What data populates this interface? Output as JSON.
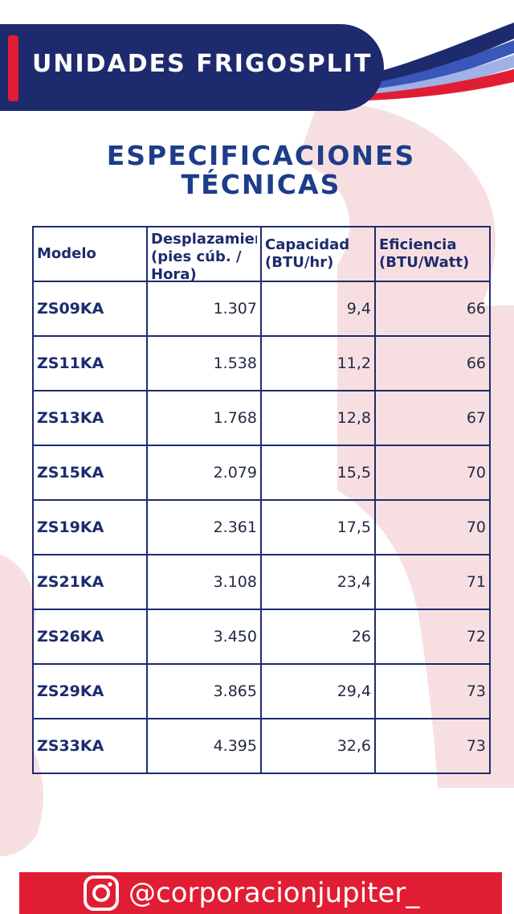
{
  "header": {
    "title": "UNIDADES FRIGOSPLIT"
  },
  "page": {
    "title_line1": "ESPECIFICACIONES",
    "title_line2": "TÉCNICAS"
  },
  "table": {
    "columns": [
      "Modelo",
      "Desplazamiento (pies cúb. / Hora)",
      "Capacidad (BTU/hr)",
      "Eficiencia (BTU/Watt)"
    ],
    "rows": [
      {
        "model": "ZS09KA",
        "displacement": "1.307",
        "capacity": "9,4",
        "efficiency": "66"
      },
      {
        "model": "ZS11KA",
        "displacement": "1.538",
        "capacity": "11,2",
        "efficiency": "66"
      },
      {
        "model": "ZS13KA",
        "displacement": "1.768",
        "capacity": "12,8",
        "efficiency": "67"
      },
      {
        "model": "ZS15KA",
        "displacement": "2.079",
        "capacity": "15,5",
        "efficiency": "70"
      },
      {
        "model": "ZS19KA",
        "displacement": "2.361",
        "capacity": "17,5",
        "efficiency": "70"
      },
      {
        "model": "ZS21KA",
        "displacement": "3.108",
        "capacity": "23,4",
        "efficiency": "71"
      },
      {
        "model": "ZS26KA",
        "displacement": "3.450",
        "capacity": "26",
        "efficiency": "72"
      },
      {
        "model": "ZS29KA",
        "displacement": "3.865",
        "capacity": "29,4",
        "efficiency": "73"
      },
      {
        "model": "ZS33KA",
        "displacement": "4.395",
        "capacity": "32,6",
        "efficiency": "73"
      }
    ]
  },
  "footer": {
    "handle": "@corporacionjupiter_",
    "icon": "instagram-icon"
  },
  "colors": {
    "navy": "#1d2b6e",
    "title_blue": "#1d3d8a",
    "red": "#e11d33",
    "watermark": "#f7dfe1"
  }
}
